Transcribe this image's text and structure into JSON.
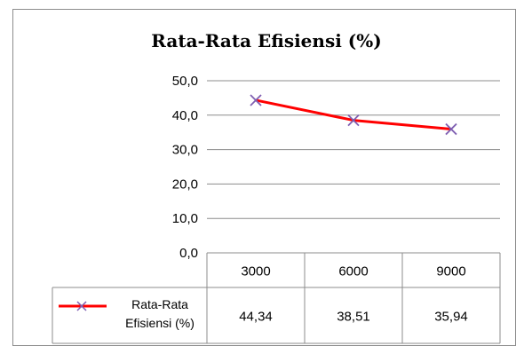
{
  "chart_data": {
    "type": "line",
    "title": "Rata-Rata Efisiensi (%)",
    "categories": [
      "3000",
      "6000",
      "9000"
    ],
    "series": [
      {
        "name_lines": [
          "Rata-Rata",
          "Efisiensi (%)"
        ],
        "values": [
          44.34,
          38.51,
          35.94
        ],
        "value_labels": [
          "44,34",
          "38,51",
          "35,94"
        ],
        "line_color": "#ff0000",
        "marker_color": "#7f5fb2",
        "marker": "x"
      }
    ],
    "ylim": [
      0,
      50
    ],
    "yticks": [
      0,
      10,
      20,
      30,
      40,
      50
    ],
    "ytick_labels": [
      "0,0",
      "10,0",
      "20,0",
      "30,0",
      "40,0",
      "50,0"
    ],
    "grid": true,
    "legend": "data-table",
    "xlabel": "",
    "ylabel": ""
  }
}
